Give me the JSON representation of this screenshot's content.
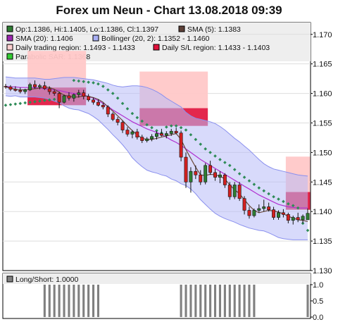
{
  "chart_data": {
    "type": "candlestick",
    "title": "Forex um Neun - Chart 13.08.2018 09:39",
    "main": {
      "ylim": [
        1.13,
        1.172
      ],
      "yticks": [
        1.13,
        1.135,
        1.14,
        1.145,
        1.15,
        1.155,
        1.16,
        1.165,
        1.17
      ],
      "legend": [
        {
          "label": "Op:1.1386, Hi:1.1405, Lo:1.1386, Cl:1.1397",
          "color": "#2e7d32",
          "border": "#000000"
        },
        {
          "label": "SMA (5): 1.1383",
          "color": "#5d4037",
          "border": "#000000"
        },
        {
          "label": "SMA (20): 1.1406",
          "color": "#9c27b0",
          "border": "#000000"
        },
        {
          "label": "Bollinger (20, 2): 1.1352 - 1.1460",
          "color": "#aab0f5",
          "border": "#000000"
        },
        {
          "label": "Daily trading region: 1.1493 - 1.1433",
          "color": "#ffd0d0",
          "border": "#000000"
        },
        {
          "label": "Daily S/L region: 1.1433 - 1.1403",
          "color": "#e0103a",
          "border": "#000000"
        },
        {
          "label": "Parabolic SAR: 1.1368",
          "color": "#33cc33",
          "border": "#000000"
        }
      ],
      "candles": [
        [
          1.1612,
          1.1616,
          1.1608,
          1.1611
        ],
        [
          1.1611,
          1.1614,
          1.1604,
          1.1607
        ],
        [
          1.1607,
          1.1612,
          1.1603,
          1.1605
        ],
        [
          1.1605,
          1.161,
          1.16,
          1.1603
        ],
        [
          1.1603,
          1.1608,
          1.1599,
          1.1606
        ],
        [
          1.1606,
          1.1618,
          1.1604,
          1.1615
        ],
        [
          1.1615,
          1.1622,
          1.1608,
          1.1611
        ],
        [
          1.1611,
          1.1616,
          1.1607,
          1.1613
        ],
        [
          1.1613,
          1.162,
          1.1606,
          1.1608
        ],
        [
          1.1608,
          1.1612,
          1.1598,
          1.1603
        ],
        [
          1.1603,
          1.1606,
          1.1596,
          1.16
        ],
        [
          1.16,
          1.1603,
          1.1575,
          1.1585
        ],
        [
          1.1585,
          1.1598,
          1.1583,
          1.1596
        ],
        [
          1.1596,
          1.1602,
          1.1588,
          1.1592
        ],
        [
          1.1592,
          1.16,
          1.1586,
          1.1598
        ],
        [
          1.1598,
          1.1606,
          1.1593,
          1.1601
        ],
        [
          1.1601,
          1.1606,
          1.159,
          1.1595
        ],
        [
          1.1595,
          1.1599,
          1.1586,
          1.1589
        ],
        [
          1.1589,
          1.1593,
          1.1581,
          1.1585
        ],
        [
          1.1585,
          1.159,
          1.1578,
          1.158
        ],
        [
          1.158,
          1.1584,
          1.1573,
          1.1577
        ],
        [
          1.1577,
          1.158,
          1.156,
          1.1565
        ],
        [
          1.1565,
          1.1568,
          1.1553,
          1.1556
        ],
        [
          1.1556,
          1.156,
          1.1546,
          1.1551
        ],
        [
          1.1551,
          1.1554,
          1.1533,
          1.1538
        ],
        [
          1.1538,
          1.1543,
          1.1527,
          1.1531
        ],
        [
          1.1531,
          1.1538,
          1.1524,
          1.1535
        ],
        [
          1.1535,
          1.154,
          1.1522,
          1.1526
        ],
        [
          1.1526,
          1.153,
          1.1516,
          1.152
        ],
        [
          1.152,
          1.1526,
          1.1517,
          1.1523
        ],
        [
          1.1523,
          1.1531,
          1.1519,
          1.1527
        ],
        [
          1.1527,
          1.1536,
          1.1522,
          1.1532
        ],
        [
          1.1532,
          1.154,
          1.1527,
          1.1529
        ],
        [
          1.1529,
          1.1536,
          1.1524,
          1.1532
        ],
        [
          1.1532,
          1.154,
          1.1528,
          1.1536
        ],
        [
          1.1536,
          1.1542,
          1.1531,
          1.1533
        ],
        [
          1.1533,
          1.1537,
          1.1485,
          1.1492
        ],
        [
          1.1492,
          1.15,
          1.144,
          1.145
        ],
        [
          1.145,
          1.1475,
          1.1432,
          1.1468
        ],
        [
          1.1468,
          1.1478,
          1.1455,
          1.1462
        ],
        [
          1.1462,
          1.147,
          1.1445,
          1.145
        ],
        [
          1.145,
          1.1482,
          1.1446,
          1.1478
        ],
        [
          1.1478,
          1.1486,
          1.1462,
          1.1466
        ],
        [
          1.1466,
          1.1472,
          1.1452,
          1.1458
        ],
        [
          1.1458,
          1.1468,
          1.1448,
          1.1462
        ],
        [
          1.1462,
          1.1465,
          1.144,
          1.1445
        ],
        [
          1.1445,
          1.145,
          1.142,
          1.1425
        ],
        [
          1.1425,
          1.145,
          1.1421,
          1.1445
        ],
        [
          1.1445,
          1.145,
          1.1418,
          1.1422
        ],
        [
          1.1422,
          1.1426,
          1.1395,
          1.1402
        ],
        [
          1.1402,
          1.1408,
          1.1388,
          1.1393
        ],
        [
          1.1393,
          1.1405,
          1.139,
          1.1402
        ],
        [
          1.1402,
          1.1412,
          1.1398,
          1.1405
        ],
        [
          1.1405,
          1.142,
          1.14,
          1.1408
        ],
        [
          1.1408,
          1.1415,
          1.14,
          1.1403
        ],
        [
          1.1403,
          1.1408,
          1.1386,
          1.139
        ],
        [
          1.139,
          1.1402,
          1.1386,
          1.1398
        ],
        [
          1.1398,
          1.1404,
          1.139,
          1.1395
        ],
        [
          1.1395,
          1.1398,
          1.138,
          1.1385
        ],
        [
          1.1385,
          1.1393,
          1.1378,
          1.139
        ],
        [
          1.139,
          1.1398,
          1.1382,
          1.1386
        ],
        [
          1.1386,
          1.1395,
          1.138,
          1.1392
        ],
        [
          1.1386,
          1.1405,
          1.1386,
          1.1397
        ]
      ],
      "sma5": [
        1.1611,
        1.1609,
        1.1607,
        1.1606,
        1.1606,
        1.1607,
        1.1608,
        1.1609,
        1.1611,
        1.161,
        1.1607,
        1.1602,
        1.1597,
        1.1595,
        1.1594,
        1.1594,
        1.1596,
        1.1595,
        1.1593,
        1.159,
        1.1585,
        1.1577,
        1.157,
        1.1562,
        1.1554,
        1.1545,
        1.1537,
        1.153,
        1.1524,
        1.1522,
        1.1522,
        1.1524,
        1.1526,
        1.1528,
        1.153,
        1.1532,
        1.1522,
        1.1505,
        1.149,
        1.1475,
        1.1462,
        1.1461,
        1.1463,
        1.1462,
        1.146,
        1.1455,
        1.1445,
        1.1437,
        1.143,
        1.142,
        1.141,
        1.1402,
        1.1398,
        1.14,
        1.1402,
        1.1401,
        1.1399,
        1.1396,
        1.1392,
        1.1389,
        1.1386,
        1.1385,
        1.1383
      ],
      "sma20": [
        1.1612,
        1.1611,
        1.1611,
        1.161,
        1.161,
        1.161,
        1.161,
        1.1609,
        1.1608,
        1.1607,
        1.1606,
        1.1605,
        1.1603,
        1.1601,
        1.16,
        1.1599,
        1.1597,
        1.1595,
        1.1592,
        1.1588,
        1.1583,
        1.1578,
        1.1572,
        1.1567,
        1.1562,
        1.1557,
        1.1552,
        1.1548,
        1.1544,
        1.154,
        1.1537,
        1.1534,
        1.153,
        1.1526,
        1.1521,
        1.1517,
        1.1512,
        1.1506,
        1.15,
        1.1494,
        1.1488,
        1.1483,
        1.1478,
        1.1473,
        1.1468,
        1.1463,
        1.1458,
        1.1453,
        1.1448,
        1.1443,
        1.1438,
        1.1433,
        1.1428,
        1.1424,
        1.142,
        1.1416,
        1.1412,
        1.141,
        1.1408,
        1.1407,
        1.1406,
        1.1406,
        1.1406
      ],
      "boll_upper": [
        1.1628,
        1.1627,
        1.1626,
        1.1626,
        1.1626,
        1.1626,
        1.1626,
        1.1625,
        1.1624,
        1.1624,
        1.1625,
        1.1626,
        1.1627,
        1.1627,
        1.1627,
        1.1626,
        1.1625,
        1.1624,
        1.1623,
        1.1621,
        1.1619,
        1.1617,
        1.1614,
        1.1612,
        1.1611,
        1.1612,
        1.1613,
        1.1613,
        1.1612,
        1.161,
        1.1607,
        1.1603,
        1.1598,
        1.1592,
        1.1587,
        1.1582,
        1.1577,
        1.1568,
        1.1562,
        1.1558,
        1.1556,
        1.1554,
        1.1552,
        1.1549,
        1.1544,
        1.1538,
        1.1531,
        1.1524,
        1.1518,
        1.1511,
        1.1504,
        1.1496,
        1.1488,
        1.1481,
        1.1476,
        1.1472,
        1.147,
        1.1468,
        1.1466,
        1.1464,
        1.1462,
        1.1461,
        1.146
      ],
      "boll_lower": [
        1.1596,
        1.1595,
        1.1596,
        1.1594,
        1.1594,
        1.1594,
        1.1594,
        1.1593,
        1.1592,
        1.159,
        1.1587,
        1.1584,
        1.1579,
        1.1575,
        1.1573,
        1.1572,
        1.1569,
        1.1566,
        1.1561,
        1.1555,
        1.1547,
        1.1539,
        1.153,
        1.1522,
        1.1513,
        1.1503,
        1.1491,
        1.1483,
        1.1476,
        1.147,
        1.1467,
        1.1465,
        1.1462,
        1.146,
        1.1455,
        1.1452,
        1.1447,
        1.1444,
        1.1438,
        1.143,
        1.142,
        1.1412,
        1.1404,
        1.1397,
        1.1392,
        1.1388,
        1.1385,
        1.1382,
        1.1378,
        1.1375,
        1.1372,
        1.137,
        1.1368,
        1.1367,
        1.1364,
        1.136,
        1.1356,
        1.1354,
        1.1353,
        1.1352,
        1.1352,
        1.1352,
        1.1352
      ],
      "sar": [
        1.158,
        1.1581,
        1.1582,
        1.1583,
        1.1584,
        1.1585,
        1.1586,
        1.1587,
        1.1588,
        1.1589,
        1.159,
        1.1591,
        null,
        null,
        1.1622,
        1.1621,
        1.162,
        1.1619,
        1.1618,
        1.1616,
        1.1612,
        1.1606,
        1.16,
        1.1592,
        1.1583,
        1.1574,
        1.1566,
        1.1559,
        1.1553,
        1.1547,
        1.1542,
        1.1537,
        1.1533,
        1.1543,
        1.1545,
        1.1545,
        1.1542,
        1.1538,
        1.153,
        1.1522,
        1.1514,
        1.1506,
        1.15,
        1.1494,
        1.1488,
        1.1483,
        1.1478,
        1.1471,
        1.1464,
        1.1458,
        1.1452,
        1.1446,
        1.144,
        1.1435,
        1.143,
        1.1425,
        1.1421,
        1.1417,
        1.1413,
        1.141,
        1.1406,
        1.138,
        1.1368
      ],
      "sl_regions": [
        {
          "from_index": 5,
          "to_index": 16,
          "top": 1.161,
          "bottom": 1.158
        },
        {
          "from_index": 28,
          "to_index": 41,
          "top": 1.1575,
          "bottom": 1.1545
        },
        {
          "from_index": 58,
          "to_index": 62,
          "top": 1.1433,
          "bottom": 1.1403
        }
      ],
      "trading_regions": [
        {
          "from_index": 5,
          "to_index": 16,
          "top": 1.1672,
          "bottom": 1.161
        },
        {
          "from_index": 28,
          "to_index": 41,
          "top": 1.1637,
          "bottom": 1.1575
        },
        {
          "from_index": 58,
          "to_index": 62,
          "top": 1.1493,
          "bottom": 1.1433
        }
      ]
    },
    "sub": {
      "legend": [
        {
          "label": "Long/Short: 1.0000",
          "color": "#808080",
          "border": "#000000"
        }
      ],
      "ylim": [
        0,
        1
      ],
      "yticks": [
        0.0,
        0.5,
        1.0
      ],
      "bars": [
        0,
        0,
        0,
        0,
        0,
        0,
        0,
        0,
        1,
        1,
        1,
        1,
        1,
        1,
        1,
        1,
        1,
        1,
        1,
        1,
        0,
        0,
        0,
        0,
        0,
        0,
        0,
        0,
        0,
        0,
        0,
        0,
        0,
        0,
        0,
        0,
        1,
        1,
        1,
        1,
        1,
        1,
        1,
        1,
        1,
        1,
        1,
        1,
        1,
        1,
        1,
        1,
        0,
        0,
        0,
        0,
        0,
        0,
        0,
        0,
        0,
        0,
        1
      ]
    }
  }
}
